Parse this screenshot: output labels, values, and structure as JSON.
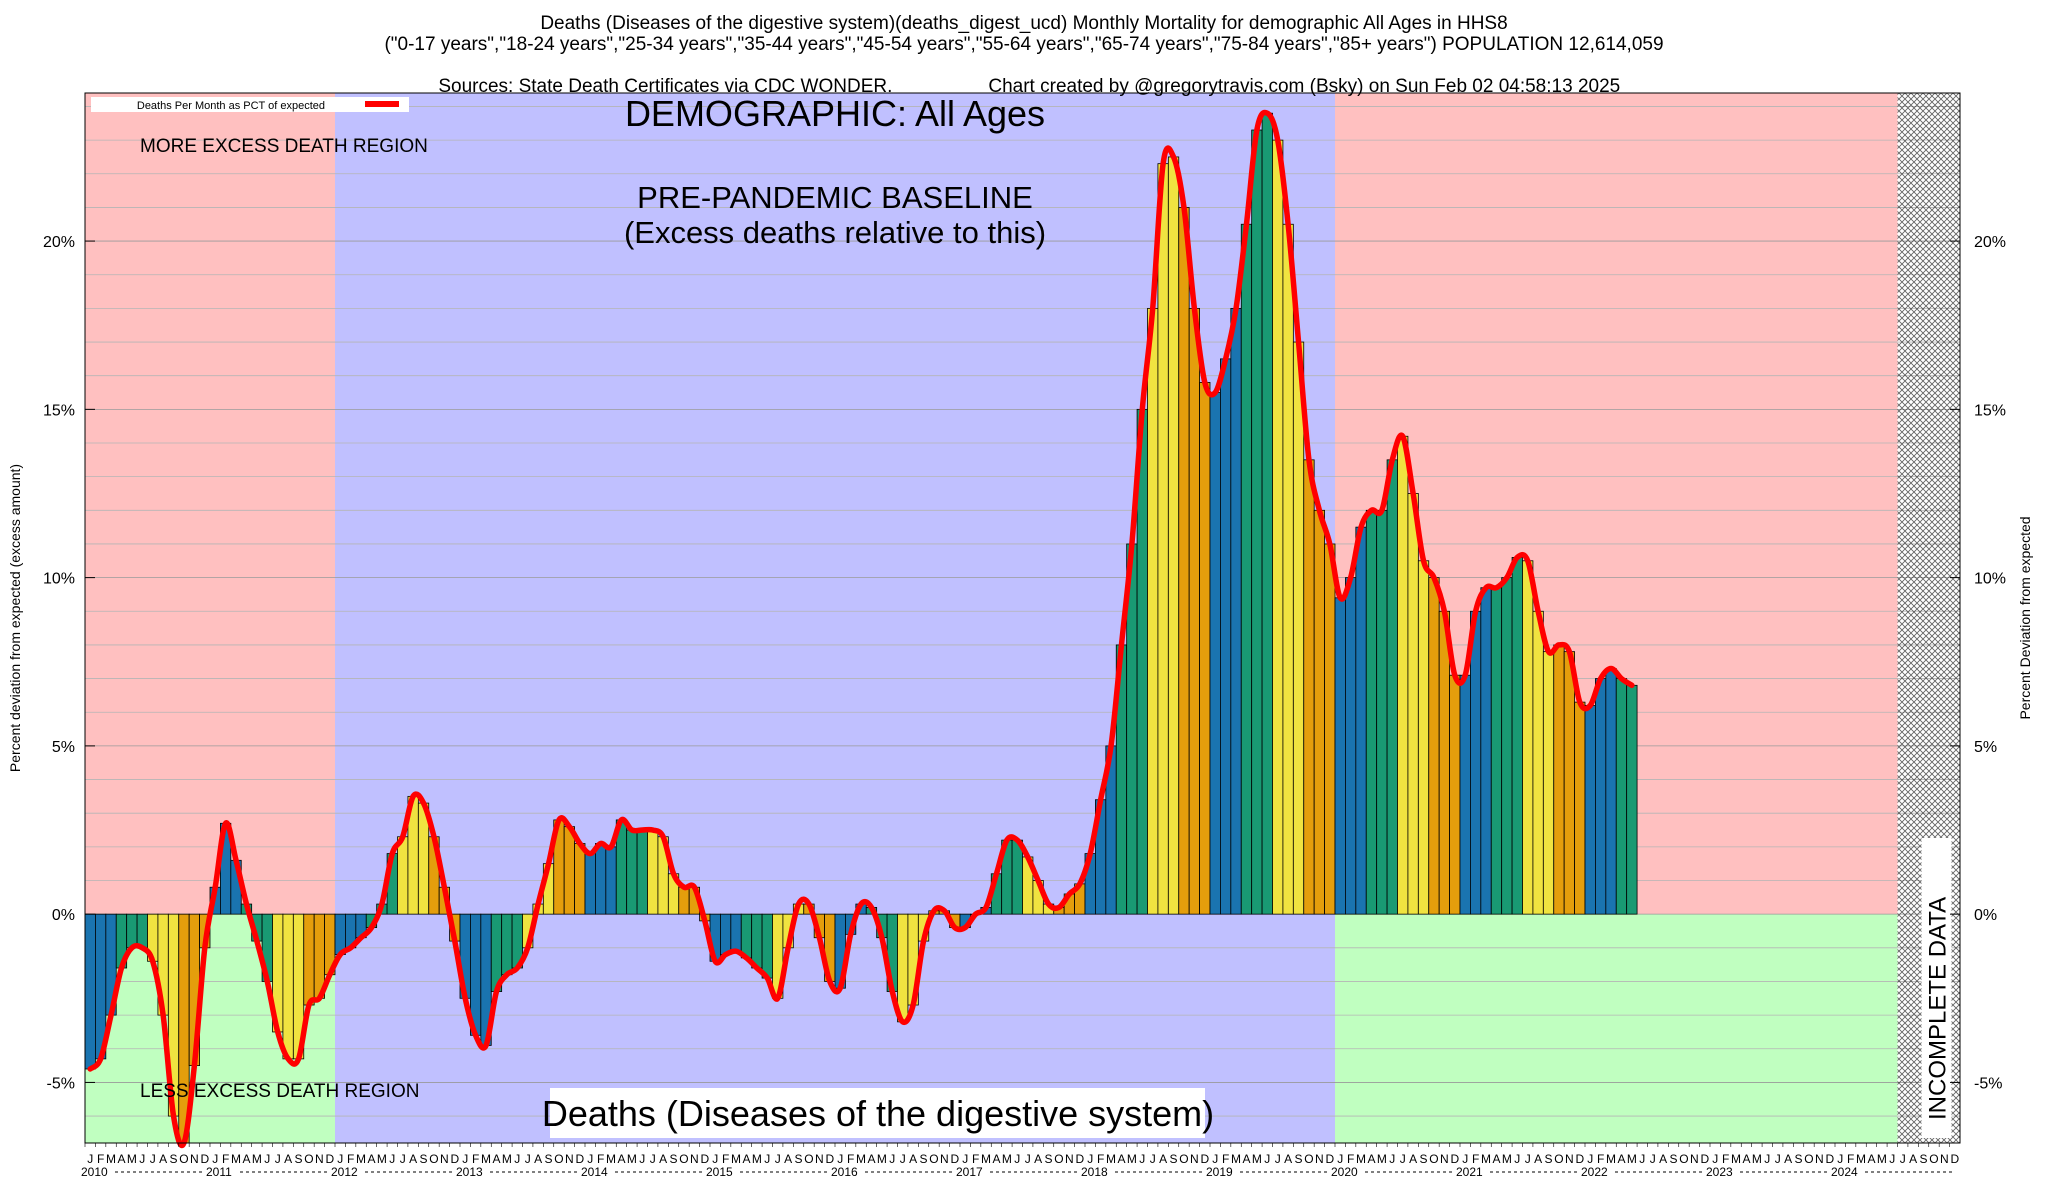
{
  "header": {
    "line1": "Deaths (Diseases of the digestive system)(deaths_digest_ucd) Monthly Mortality for demographic All Ages in HHS8",
    "line2": "(\"0-17 years\",\"18-24 years\",\"25-34 years\",\"35-44 years\",\"45-54 years\",\"55-64 years\",\"65-74 years\",\"75-84 years\",\"85+ years\") POPULATION 12,614,059",
    "line3_left": "Sources: State Death Certificates via CDC WONDER.",
    "line3_right": "Chart created by @gregorytravis.com (Bsky) on Sun Feb 02 04:58:13 2025"
  },
  "annotations": {
    "legend_label": "Deaths Per Month as PCT of expected",
    "demographic": "DEMOGRAPHIC: All Ages",
    "baseline_line1": "PRE-PANDEMIC BASELINE",
    "baseline_line2": "(Excess deaths relative to this)",
    "more_excess": "MORE EXCESS DEATH REGION",
    "less_excess": "LESS EXCESS DEATH REGION",
    "bottom_title": "Deaths (Diseases of the digestive system)",
    "incomplete": "INCOMPLETE DATA"
  },
  "chart_data": {
    "type": "bar",
    "ylabel_left": "Percent deviation from expected (excess amount)",
    "ylabel_right": "Percent Deviation from expected",
    "ylim": [
      -6.8,
      24.4
    ],
    "yticks": [
      -5,
      0,
      5,
      10,
      15,
      20
    ],
    "ytick_labels": [
      "-5%",
      "0%",
      "5%",
      "10%",
      "15%",
      "20%"
    ],
    "month_letters": [
      "J",
      "F",
      "M",
      "A",
      "M",
      "J",
      "J",
      "A",
      "S",
      "O",
      "N",
      "D"
    ],
    "years": [
      "2010",
      "2011",
      "2012",
      "2013",
      "2014",
      "2015",
      "2016",
      "2017",
      "2018",
      "2019",
      "2020",
      "2021",
      "2022",
      "2023",
      "2024"
    ],
    "grid": true,
    "legend_position": "top-left",
    "regions": [
      {
        "name": "MORE EXCESS DEATH REGION",
        "from": "2010-01",
        "to": "2011-12",
        "side": "above",
        "color": "#ffc0c0"
      },
      {
        "name": "LESS EXCESS DEATH REGION",
        "from": "2010-01",
        "to": "2011-12",
        "side": "below",
        "color": "#c0ffc0"
      },
      {
        "name": "PRE-PANDEMIC BASELINE",
        "from": "2012-01",
        "to": "2019-12",
        "color": "#c0c0ff"
      },
      {
        "name": "MORE EXCESS DEATH REGION",
        "from": "2020-01",
        "to": "2024-06",
        "side": "above",
        "color": "#ffc0c0"
      },
      {
        "name": "LESS EXCESS DEATH REGION",
        "from": "2020-01",
        "to": "2024-06",
        "side": "below",
        "color": "#c0ffc0"
      },
      {
        "name": "INCOMPLETE DATA",
        "from": "2024-07",
        "to": "2024-12"
      }
    ],
    "quarter_colors": [
      "#1a74b0",
      "#199a73",
      "#f0e340",
      "#e49e0c"
    ],
    "series": [
      {
        "name": "Deaths Per Month as PCT of expected",
        "color": "#ff0000",
        "values": [
          -4.6,
          -4.3,
          -3.0,
          -1.6,
          -1.0,
          -1.0,
          -1.4,
          -3.0,
          -6.0,
          -6.8,
          -4.5,
          -1.0,
          0.8,
          2.7,
          1.6,
          0.3,
          -0.8,
          -2.0,
          -3.5,
          -4.3,
          -4.3,
          -2.7,
          -2.5,
          -1.8,
          -1.2,
          -1.0,
          -0.7,
          -0.4,
          0.3,
          1.8,
          2.3,
          3.5,
          3.3,
          2.3,
          0.8,
          -0.8,
          -2.5,
          -3.6,
          -3.9,
          -2.3,
          -1.8,
          -1.6,
          -1.0,
          0.3,
          1.5,
          2.8,
          2.6,
          2.1,
          1.8,
          2.1,
          2.0,
          2.8,
          2.5,
          2.5,
          2.5,
          2.3,
          1.2,
          0.8,
          0.8,
          -0.2,
          -1.4,
          -1.2,
          -1.1,
          -1.3,
          -1.6,
          -1.9,
          -2.5,
          -1.0,
          0.3,
          0.3,
          -0.7,
          -2.0,
          -2.2,
          -0.6,
          0.3,
          0.2,
          -0.7,
          -2.3,
          -3.2,
          -2.7,
          -0.8,
          0.1,
          0.1,
          -0.4,
          -0.4,
          0.0,
          0.2,
          1.2,
          2.2,
          2.2,
          1.7,
          1.0,
          0.3,
          0.2,
          0.6,
          0.9,
          1.8,
          3.4,
          5.0,
          8.0,
          11.0,
          15.0,
          18.0,
          22.3,
          22.5,
          21.0,
          18.0,
          15.8,
          15.5,
          16.5,
          18.0,
          20.5,
          23.3,
          23.8,
          23.0,
          20.5,
          17.0,
          13.5,
          12.0,
          11.0,
          9.4,
          10.0,
          11.5,
          12.0,
          12.0,
          13.5,
          14.2,
          12.5,
          10.5,
          10.0,
          9.0,
          7.1,
          7.1,
          9.0,
          9.7,
          9.7,
          10.0,
          10.6,
          10.5,
          9.0,
          7.8,
          8.0,
          7.8,
          6.3,
          6.2,
          7.0,
          7.3,
          7.0,
          6.8
        ]
      }
    ]
  }
}
